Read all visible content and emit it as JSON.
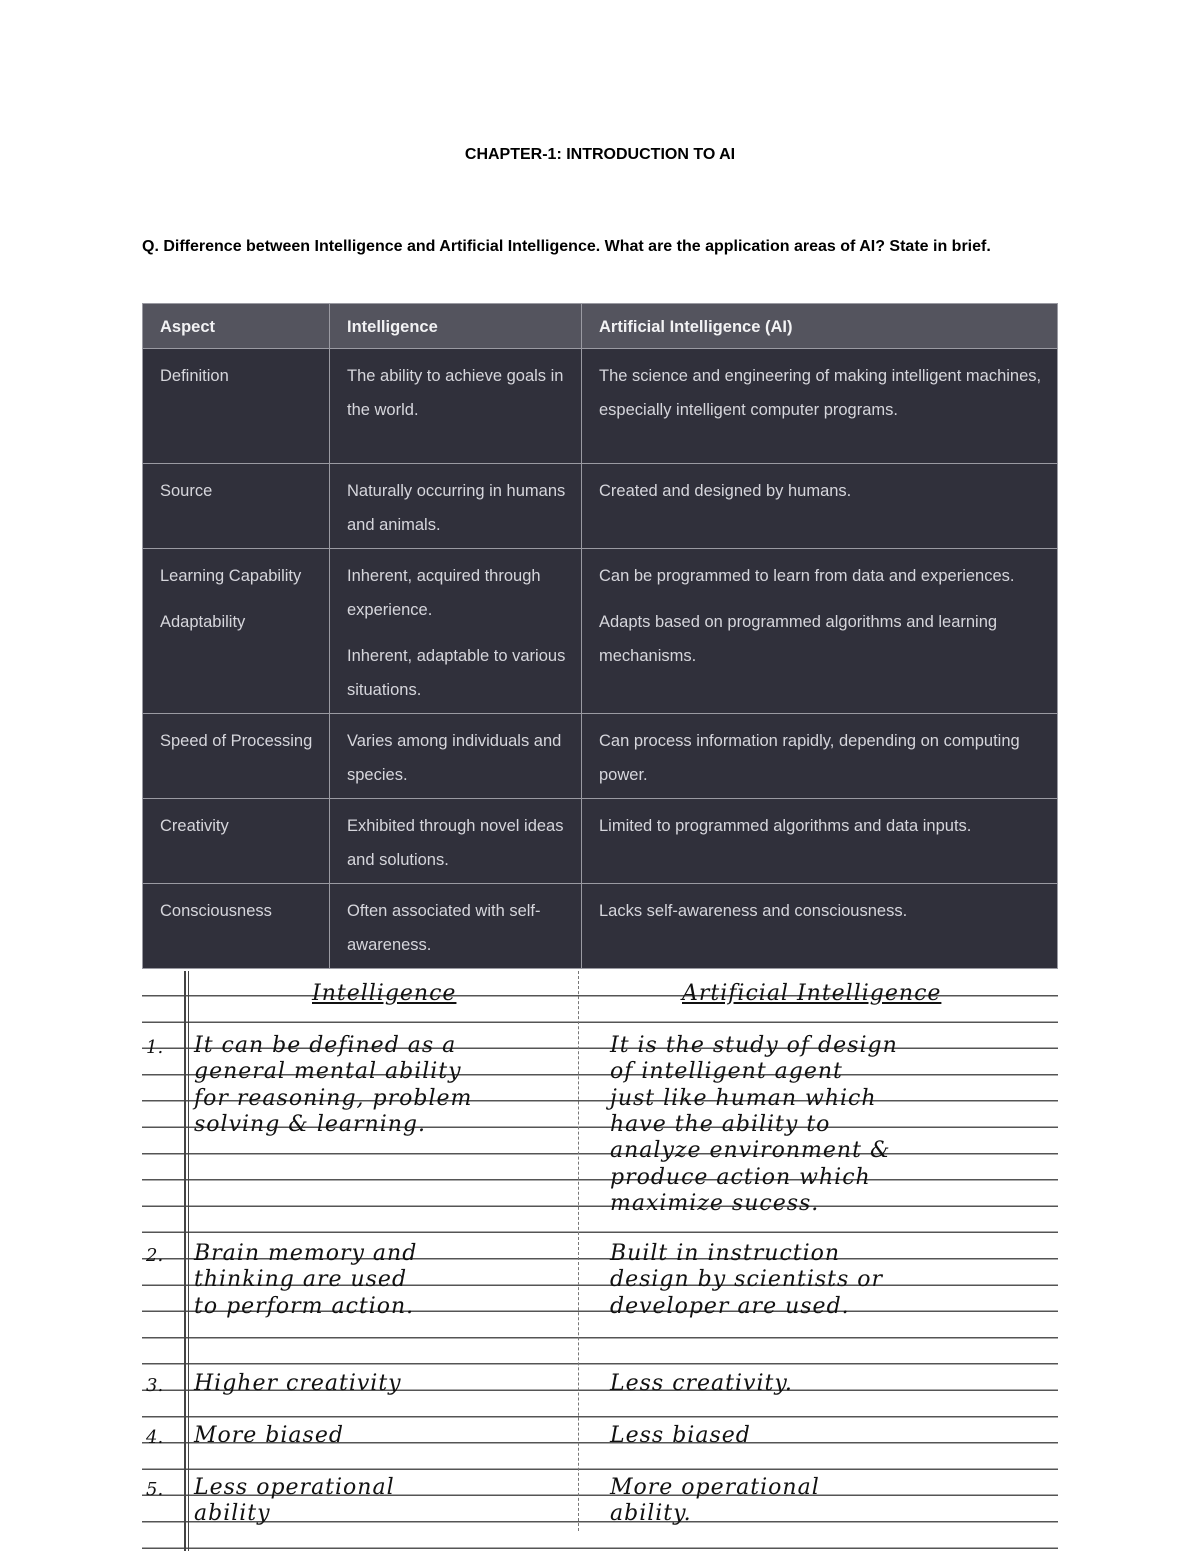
{
  "document": {
    "title": "CHAPTER-1: INTRODUCTION TO AI",
    "question": "Q. Difference between Intelligence and Artificial Intelligence. What are the application areas of AI? State in brief."
  },
  "table": {
    "headers": [
      "Aspect",
      "Intelligence",
      "Artificial Intelligence (AI)"
    ],
    "rows": [
      {
        "aspect": [
          "Definition"
        ],
        "intelligence": [
          "The ability to achieve goals in the world."
        ],
        "ai": [
          "The science and engineering of making intelligent machines, especially intelligent computer programs."
        ]
      },
      {
        "aspect": [
          "Source"
        ],
        "intelligence": [
          "Naturally occurring in humans and animals."
        ],
        "ai": [
          "Created and designed by humans."
        ]
      },
      {
        "aspect": [
          "Learning Capability",
          "Adaptability"
        ],
        "intelligence": [
          "Inherent, acquired through experience.",
          "Inherent, adaptable to various situations."
        ],
        "ai": [
          "Can be programmed to learn from data and experiences.",
          "Adapts based on programmed algorithms and learning mechanisms."
        ]
      },
      {
        "aspect": [
          "Speed of Processing"
        ],
        "intelligence": [
          "Varies among individuals and species."
        ],
        "ai": [
          "Can process information rapidly, depending on computing power."
        ]
      },
      {
        "aspect": [
          "Creativity"
        ],
        "intelligence": [
          "Exhibited through novel ideas and solutions."
        ],
        "ai": [
          "Limited to programmed algorithms and data inputs."
        ]
      },
      {
        "aspect": [
          "Consciousness"
        ],
        "intelligence": [
          "Often associated with self-awareness."
        ],
        "ai": [
          "Lacks self-awareness and consciousness."
        ]
      }
    ]
  },
  "handwritten": {
    "headers": [
      "Intelligence",
      "Artificial Intelligence"
    ],
    "points": [
      {
        "number": "1.",
        "intelligence": [
          "It can be defined as a",
          "general mental ability",
          "for reasoning, problem",
          "solving & learning."
        ],
        "ai": [
          "It is the study of design",
          "of intelligent agent",
          "just like human which",
          "have the ability to",
          "analyze environment &",
          "produce action which",
          "maximize sucess."
        ]
      },
      {
        "number": "2.",
        "intelligence": [
          "Brain memory and",
          "thinking are used",
          "to perform action."
        ],
        "ai": [
          "Built in instruction",
          "design by scientists or",
          "developer are used."
        ]
      },
      {
        "number": "3.",
        "intelligence": [
          "Higher creativity"
        ],
        "ai": [
          "Less creativity."
        ]
      },
      {
        "number": "4.",
        "intelligence": [
          "More biased"
        ],
        "ai": [
          "Less biased"
        ]
      },
      {
        "number": "5.",
        "intelligence": [
          "Less operational",
          "ability"
        ],
        "ai": [
          "More operational",
          "ability."
        ]
      }
    ]
  }
}
